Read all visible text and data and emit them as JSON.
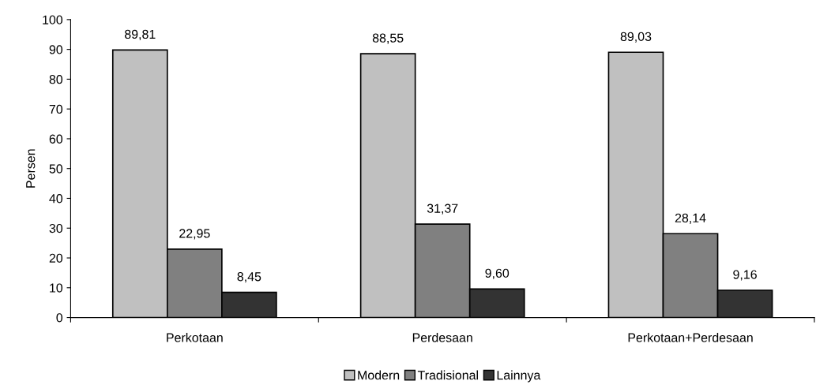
{
  "chart_data": {
    "type": "bar",
    "ylabel": "Persen",
    "categories": [
      "Perkotaan",
      "Perdesaan",
      "Perkotaan+Perdesaan"
    ],
    "series": [
      {
        "name": "Modern",
        "color": "#c0c0c0",
        "values": [
          89.81,
          88.55,
          89.03
        ],
        "value_labels": [
          "89,81",
          "88,55",
          "89,03"
        ]
      },
      {
        "name": "Tradisional",
        "color": "#808080",
        "values": [
          22.95,
          31.37,
          28.14
        ],
        "value_labels": [
          "22,95",
          "31,37",
          "28,14"
        ]
      },
      {
        "name": "Lainnya",
        "color": "#333333",
        "values": [
          8.45,
          9.6,
          9.16
        ],
        "value_labels": [
          "8,45",
          "9,60",
          "9,16"
        ]
      }
    ],
    "ylim": [
      0,
      100
    ],
    "yticks": [
      0,
      10,
      20,
      30,
      40,
      50,
      60,
      70,
      80,
      90,
      100
    ],
    "grid": false,
    "legend": "bottom"
  }
}
